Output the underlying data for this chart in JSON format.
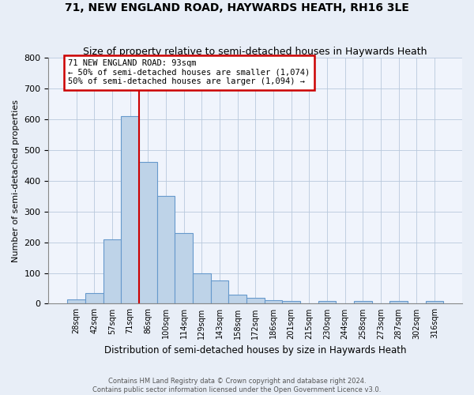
{
  "title": "71, NEW ENGLAND ROAD, HAYWARDS HEATH, RH16 3LE",
  "subtitle": "Size of property relative to semi-detached houses in Haywards Heath",
  "xlabel": "Distribution of semi-detached houses by size in Haywards Heath",
  "ylabel": "Number of semi-detached properties",
  "categories": [
    "28sqm",
    "42sqm",
    "57sqm",
    "71sqm",
    "86sqm",
    "100sqm",
    "114sqm",
    "129sqm",
    "143sqm",
    "158sqm",
    "172sqm",
    "186sqm",
    "201sqm",
    "215sqm",
    "230sqm",
    "244sqm",
    "258sqm",
    "273sqm",
    "287sqm",
    "302sqm",
    "316sqm"
  ],
  "values": [
    15,
    35,
    210,
    610,
    460,
    350,
    230,
    100,
    75,
    30,
    20,
    12,
    10,
    0,
    10,
    0,
    8,
    0,
    10,
    0,
    10
  ],
  "vline_index": 4,
  "bar_color": "#bed3e8",
  "bar_edge_color": "#6699cc",
  "vline_color": "#cc0000",
  "annotation_text": "71 NEW ENGLAND ROAD: 93sqm\n← 50% of semi-detached houses are smaller (1,074)\n50% of semi-detached houses are larger (1,094) →",
  "annotation_box_color": "#cc0000",
  "ylim": [
    0,
    800
  ],
  "yticks": [
    0,
    100,
    200,
    300,
    400,
    500,
    600,
    700,
    800
  ],
  "footer1": "Contains HM Land Registry data © Crown copyright and database right 2024.",
  "footer2": "Contains public sector information licensed under the Open Government Licence v3.0.",
  "bg_color": "#e8eef7",
  "plot_bg_color": "#f0f4fc",
  "grid_color": "#b8c8dc",
  "title_fontsize": 10,
  "subtitle_fontsize": 9
}
